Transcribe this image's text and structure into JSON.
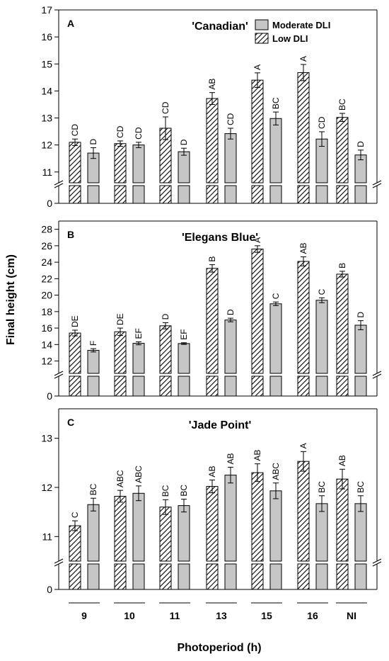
{
  "y_axis_title": "Final height (cm)",
  "x_axis_title": "Photoperiod (h)",
  "chart_data": [
    {
      "type": "bar",
      "panel": "A",
      "title": "'Canadian'",
      "categories": [
        "9",
        "10",
        "11",
        "13",
        "15",
        "16",
        "NI"
      ],
      "series": [
        {
          "name": "Low DLI",
          "pattern": "hatched",
          "values": [
            12.1,
            12.05,
            12.62,
            13.72,
            14.4,
            14.68,
            13.02
          ],
          "errors": [
            0.12,
            0.1,
            0.42,
            0.22,
            0.27,
            0.3,
            0.15
          ],
          "labels": [
            "CD",
            "CD",
            "CD",
            "AB",
            "A",
            "A",
            "BC"
          ]
        },
        {
          "name": "Moderate DLI",
          "pattern": "solid",
          "color": "#c6c6c6",
          "values": [
            11.7,
            12.0,
            11.75,
            12.42,
            12.98,
            12.22,
            11.63
          ],
          "errors": [
            0.2,
            0.1,
            0.13,
            0.2,
            0.24,
            0.27,
            0.18
          ],
          "labels": [
            "D",
            "CD",
            "D",
            "CD",
            "BC",
            "CD",
            "D"
          ]
        }
      ],
      "yticks": [
        0,
        11,
        12,
        13,
        14,
        15,
        16,
        17
      ],
      "ylim": [
        10.6,
        17
      ],
      "axis_break": true,
      "legend": "top-right"
    },
    {
      "type": "bar",
      "panel": "B",
      "title": "'Elegans Blue'",
      "categories": [
        "9",
        "10",
        "11",
        "13",
        "15",
        "16",
        "NI"
      ],
      "series": [
        {
          "name": "Low DLI",
          "pattern": "hatched",
          "values": [
            15.4,
            15.55,
            16.28,
            23.25,
            25.6,
            24.1,
            22.55
          ],
          "errors": [
            0.35,
            0.45,
            0.38,
            0.45,
            0.4,
            0.55,
            0.35
          ],
          "labels": [
            "DE",
            "DE",
            "D",
            "B",
            "A",
            "AB",
            "B"
          ]
        },
        {
          "name": "Moderate DLI",
          "pattern": "solid",
          "color": "#c6c6c6",
          "values": [
            13.3,
            14.15,
            14.12,
            16.98,
            18.95,
            19.38,
            16.35
          ],
          "errors": [
            0.2,
            0.18,
            0.1,
            0.22,
            0.22,
            0.3,
            0.55
          ],
          "labels": [
            "F",
            "EF",
            "EF",
            "D",
            "C",
            "C",
            "D"
          ]
        }
      ],
      "yticks": [
        0,
        12,
        14,
        16,
        18,
        20,
        22,
        24,
        26,
        28
      ],
      "ylim": [
        10.5,
        29
      ],
      "axis_break": true
    },
    {
      "type": "bar",
      "panel": "C",
      "title": "'Jade Point'",
      "categories": [
        "9",
        "10",
        "11",
        "13",
        "15",
        "16",
        "NI"
      ],
      "series": [
        {
          "name": "Low DLI",
          "pattern": "hatched",
          "values": [
            11.22,
            11.82,
            11.6,
            12.02,
            12.3,
            12.53,
            12.17
          ],
          "errors": [
            0.1,
            0.12,
            0.15,
            0.13,
            0.18,
            0.2,
            0.2
          ],
          "labels": [
            "C",
            "ABC",
            "BC",
            "AB",
            "AB",
            "A",
            "AB"
          ]
        },
        {
          "name": "Moderate DLI",
          "pattern": "solid",
          "color": "#c6c6c6",
          "values": [
            11.65,
            11.88,
            11.63,
            12.25,
            11.93,
            11.67,
            11.67
          ],
          "errors": [
            0.13,
            0.15,
            0.13,
            0.16,
            0.16,
            0.16,
            0.16
          ],
          "labels": [
            "BC",
            "ABC",
            "BC",
            "AB",
            "ABC",
            "BC",
            "BC"
          ]
        }
      ],
      "yticks": [
        0,
        11,
        12,
        13
      ],
      "ylim": [
        10.5,
        13.6
      ],
      "axis_break": true
    }
  ]
}
